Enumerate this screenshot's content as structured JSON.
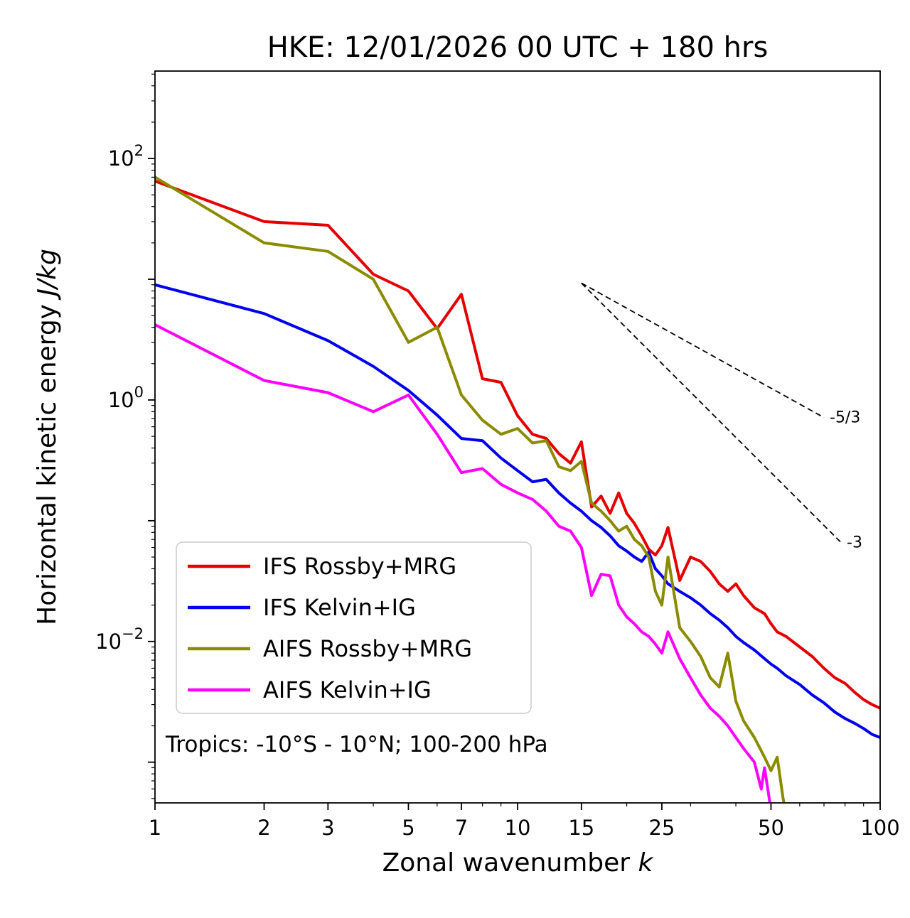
{
  "chart_data": {
    "type": "line",
    "title": "HKE: 12/01/2026 00 UTC + 180 hrs",
    "xlabel_text": "Zonal wavenumber ",
    "xlabel_math": "k",
    "ylabel_text": "Horizontal kinetic energy ",
    "ylabel_math": "J/kg",
    "x_scale": "log",
    "y_scale": "log",
    "xlim": [
      1,
      100
    ],
    "ylim": [
      0.00046,
      530
    ],
    "grid": false,
    "annotation_region": "Tropics: -10°S - 10°N; 100-200 hPa",
    "x_ticks": [
      {
        "v": 1,
        "label": "1"
      },
      {
        "v": 2,
        "label": "2"
      },
      {
        "v": 3,
        "label": "3"
      },
      {
        "v": 5,
        "label": "5"
      },
      {
        "v": 7,
        "label": "7"
      },
      {
        "v": 10,
        "label": "10"
      },
      {
        "v": 15,
        "label": "15"
      },
      {
        "v": 25,
        "label": "25"
      },
      {
        "v": 50,
        "label": "50"
      },
      {
        "v": 100,
        "label": "100"
      }
    ],
    "x_minor_ticks": [
      4,
      6,
      8,
      9,
      20,
      30,
      40,
      60,
      70,
      80,
      90
    ],
    "y_ticks": [
      {
        "v": 100,
        "base": "10",
        "exp": "2"
      },
      {
        "v": 1,
        "base": "10",
        "exp": "0"
      },
      {
        "v": 0.01,
        "base": "10",
        "exp": "−2"
      }
    ],
    "reference_lines": [
      {
        "label": "-5/3",
        "slope": "-5/3",
        "x": [
          15,
          70
        ],
        "y": [
          9.3,
          0.715
        ]
      },
      {
        "label": "-3",
        "slope": "-3",
        "x": [
          15,
          78
        ],
        "y": [
          9.3,
          0.066
        ]
      }
    ],
    "legend": {
      "position": "lower left"
    },
    "series": [
      {
        "name": "ifs-rossby-mrg",
        "label": "IFS Rossby+MRG",
        "color": "#e50000",
        "x": [
          1,
          2,
          3,
          4,
          5,
          6,
          7,
          8,
          9,
          10,
          11,
          12,
          13,
          14,
          15,
          16,
          17,
          18,
          19,
          20,
          21,
          22,
          23,
          24,
          25,
          26,
          28,
          30,
          32,
          34,
          36,
          38,
          40,
          42,
          45,
          48,
          50,
          52,
          55,
          60,
          65,
          70,
          75,
          80,
          85,
          90,
          95,
          100
        ],
        "y": [
          65,
          30,
          28,
          11,
          8,
          3.9,
          7.5,
          1.5,
          1.4,
          0.74,
          0.52,
          0.48,
          0.36,
          0.3,
          0.45,
          0.13,
          0.16,
          0.115,
          0.17,
          0.115,
          0.095,
          0.075,
          0.058,
          0.052,
          0.062,
          0.088,
          0.032,
          0.05,
          0.046,
          0.038,
          0.03,
          0.026,
          0.03,
          0.024,
          0.019,
          0.017,
          0.014,
          0.012,
          0.011,
          0.009,
          0.0075,
          0.006,
          0.005,
          0.0045,
          0.0038,
          0.0033,
          0.003,
          0.0028
        ]
      },
      {
        "name": "ifs-kelvin-ig",
        "label": "IFS Kelvin+IG",
        "color": "#0000ee",
        "x": [
          1,
          2,
          3,
          4,
          5,
          6,
          7,
          8,
          9,
          10,
          11,
          12,
          13,
          14,
          15,
          16,
          17,
          18,
          19,
          20,
          21,
          22,
          23,
          24,
          25,
          26,
          28,
          30,
          32,
          34,
          36,
          38,
          40,
          42,
          45,
          48,
          50,
          52,
          55,
          60,
          65,
          70,
          75,
          80,
          85,
          90,
          95,
          100
        ],
        "y": [
          9,
          5.2,
          3.1,
          1.9,
          1.2,
          0.75,
          0.48,
          0.46,
          0.33,
          0.26,
          0.21,
          0.22,
          0.17,
          0.14,
          0.12,
          0.1,
          0.088,
          0.075,
          0.062,
          0.056,
          0.05,
          0.046,
          0.055,
          0.04,
          0.035,
          0.03,
          0.026,
          0.023,
          0.02,
          0.017,
          0.015,
          0.013,
          0.011,
          0.0098,
          0.0085,
          0.0072,
          0.0065,
          0.006,
          0.0052,
          0.0044,
          0.0036,
          0.0031,
          0.0026,
          0.0023,
          0.0021,
          0.0019,
          0.0017,
          0.0016
        ]
      },
      {
        "name": "aifs-rossby-mrg",
        "label": "AIFS Rossby+MRG",
        "color": "#8b8b00",
        "x": [
          1,
          2,
          3,
          4,
          5,
          6,
          7,
          8,
          9,
          10,
          11,
          12,
          13,
          14,
          15,
          16,
          17,
          18,
          19,
          20,
          21,
          22,
          23,
          24,
          25,
          26,
          28,
          30,
          32,
          34,
          36,
          38,
          40,
          42,
          45,
          48,
          50,
          52,
          54,
          56
        ],
        "y": [
          70,
          20,
          17,
          10,
          3.0,
          4.0,
          1.1,
          0.68,
          0.52,
          0.58,
          0.44,
          0.46,
          0.28,
          0.26,
          0.31,
          0.14,
          0.12,
          0.1,
          0.082,
          0.09,
          0.07,
          0.062,
          0.05,
          0.026,
          0.02,
          0.05,
          0.013,
          0.01,
          0.0075,
          0.005,
          0.0042,
          0.008,
          0.0032,
          0.0022,
          0.0016,
          0.0011,
          0.00085,
          0.0011,
          0.0005,
          0.00028
        ]
      },
      {
        "name": "aifs-kelvin-ig",
        "label": "AIFS Kelvin+IG",
        "color": "#ff00ff",
        "x": [
          1,
          2,
          3,
          4,
          5,
          6,
          7,
          8,
          9,
          10,
          11,
          12,
          13,
          14,
          15,
          16,
          17,
          18,
          19,
          20,
          21,
          22,
          23,
          24,
          25,
          26,
          28,
          30,
          32,
          34,
          36,
          38,
          40,
          42,
          45,
          47,
          48,
          50,
          52
        ],
        "y": [
          4.2,
          1.45,
          1.15,
          0.8,
          1.1,
          0.52,
          0.25,
          0.27,
          0.2,
          0.17,
          0.15,
          0.12,
          0.09,
          0.082,
          0.06,
          0.024,
          0.036,
          0.035,
          0.02,
          0.016,
          0.014,
          0.012,
          0.011,
          0.0095,
          0.008,
          0.012,
          0.0072,
          0.005,
          0.0036,
          0.0028,
          0.0024,
          0.002,
          0.0016,
          0.0013,
          0.001,
          0.0006,
          0.0009,
          0.0004,
          0.0002
        ]
      }
    ]
  }
}
